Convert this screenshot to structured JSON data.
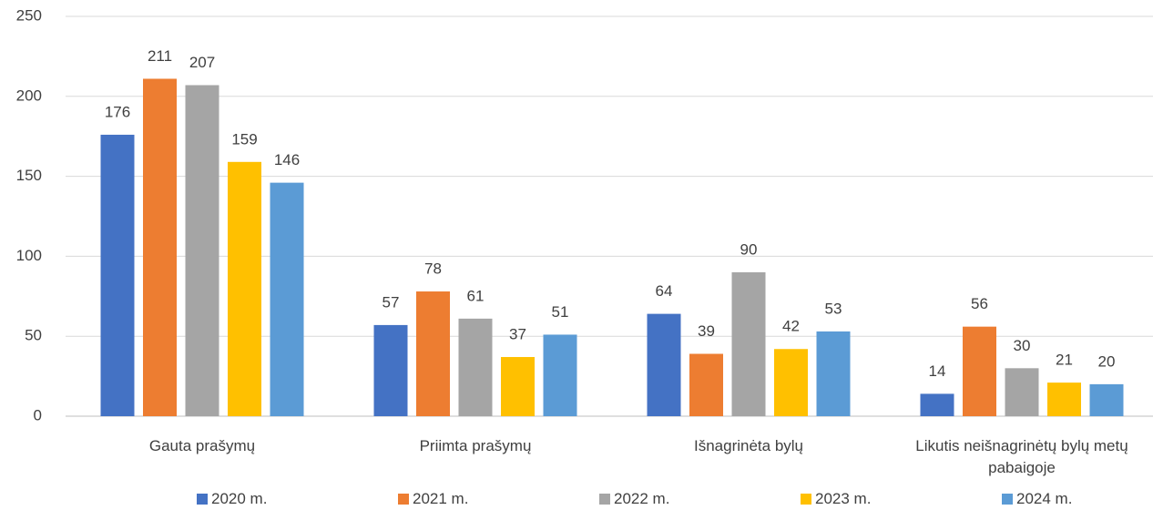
{
  "chart_data": {
    "type": "bar",
    "categories": [
      "Gauta prašymų",
      "Priimta prašymų",
      "Išnagrinėta bylų",
      "Likutis neišnagrinėtų bylų metų pabaigoje"
    ],
    "series": [
      {
        "name": "2020 m.",
        "color": "#4472c4",
        "values": [
          176,
          57,
          64,
          14
        ]
      },
      {
        "name": "2021 m.",
        "color": "#ed7d31",
        "values": [
          211,
          78,
          39,
          56
        ]
      },
      {
        "name": "2022 m.",
        "color": "#a5a5a5",
        "values": [
          207,
          61,
          90,
          30
        ]
      },
      {
        "name": "2023 m.",
        "color": "#ffc000",
        "values": [
          159,
          37,
          42,
          21
        ]
      },
      {
        "name": "2024 m.",
        "color": "#5b9bd5",
        "values": [
          146,
          51,
          53,
          20
        ]
      }
    ],
    "ylim": [
      0,
      250
    ],
    "yticks": [
      0,
      50,
      100,
      150,
      200,
      250
    ],
    "grid": true,
    "legend": "bottom"
  }
}
